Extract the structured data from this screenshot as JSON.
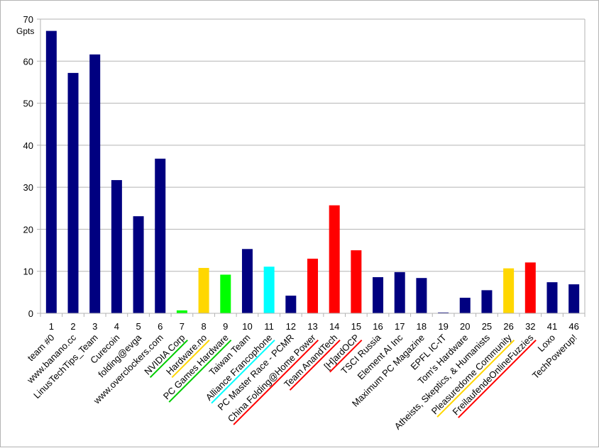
{
  "chart_data": {
    "type": "bar",
    "ylabel": "Gpts",
    "ylim": [
      0,
      70
    ],
    "yticks": [
      0,
      10,
      20,
      30,
      40,
      50,
      60,
      70
    ],
    "grid": true,
    "legend": "none",
    "categories": [
      "1",
      "2",
      "3",
      "4",
      "5",
      "6",
      "7",
      "8",
      "9",
      "10",
      "11",
      "12",
      "13",
      "14",
      "15",
      "16",
      "17",
      "18",
      "19",
      "20",
      "25",
      "26",
      "32",
      "41",
      "46"
    ],
    "teams": [
      "team #0",
      "www.banano.cc",
      "LinusTechTips_Team",
      "Curecoin",
      "folding@evga",
      "www.overclockers.com",
      "NVIDIA Corp",
      "Hardware.no",
      "PC Games Hardware",
      "Taiwan Team",
      "Alliance Francophone",
      "PC Master Race - PCMR",
      "China Folding@Home Power",
      "Team AnandTech",
      "[H]ardOCP",
      "TSCI Russia",
      "Element AI Inc",
      "Maximum PC Magazine",
      "EPFL IC-IT",
      "Tom's Hardware",
      "Atheists, Skeptics, & Humanists",
      "Pleasuredome Community",
      "FreilaufendeOnlineFuzzies",
      "Loxo",
      "TechPowerup!"
    ],
    "values": [
      67.2,
      57.2,
      61.6,
      31.7,
      23.1,
      36.8,
      0.7,
      10.8,
      9.2,
      15.3,
      11.1,
      4.2,
      13.0,
      25.7,
      15.0,
      8.6,
      9.8,
      8.4,
      0.2,
      3.7,
      5.5,
      10.7,
      12.1,
      7.4,
      6.9
    ],
    "colors": [
      "#000080",
      "#000080",
      "#000080",
      "#000080",
      "#000080",
      "#000080",
      "#00ff00",
      "#ffd700",
      "#00ff00",
      "#000080",
      "#00ffff",
      "#000080",
      "#ff0000",
      "#ff0000",
      "#ff0000",
      "#000080",
      "#000080",
      "#000080",
      "#000080",
      "#000080",
      "#000080",
      "#ffd700",
      "#ff0000",
      "#000080",
      "#000080"
    ],
    "underline_colors": [
      null,
      null,
      null,
      null,
      null,
      null,
      "#00cc00",
      "#ffd700",
      "#00cc00",
      null,
      "#00ffff",
      null,
      "#ff0000",
      "#ff0000",
      "#ff0000",
      null,
      null,
      null,
      null,
      null,
      null,
      "#ffd700",
      "#ff0000",
      null,
      null
    ]
  }
}
